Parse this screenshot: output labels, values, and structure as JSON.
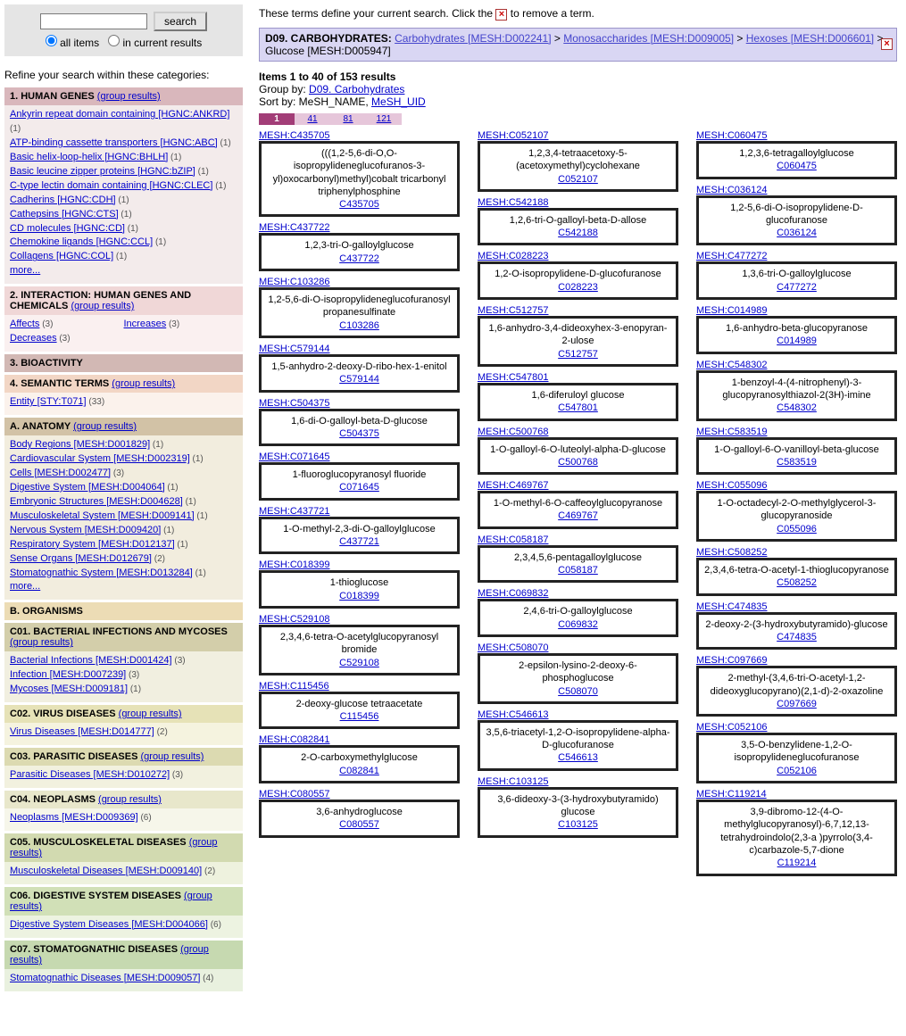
{
  "search": {
    "button": "search",
    "radio_all": "all items",
    "radio_current": "in current results"
  },
  "refine_title": "Refine your search within these categories:",
  "group_results": "(group results)",
  "more": "more...",
  "categories": [
    {
      "title": "1. HUMAN GENES",
      "header_bg": "#d9b7bc",
      "body_bg": "#f3ebeb",
      "group": true,
      "items": [
        {
          "t": "Ankyrin repeat domain containing [HGNC:ANKRD]",
          "c": 1
        },
        {
          "t": "ATP-binding cassette transporters [HGNC:ABC]",
          "c": 1
        },
        {
          "t": "Basic helix-loop-helix [HGNC:BHLH]",
          "c": 1
        },
        {
          "t": "Basic leucine zipper proteins [HGNC:bZIP]",
          "c": 1
        },
        {
          "t": "C-type lectin domain containing [HGNC:CLEC]",
          "c": 1
        },
        {
          "t": "Cadherins [HGNC:CDH]",
          "c": 1
        },
        {
          "t": "Cathepsins [HGNC:CTS]",
          "c": 1
        },
        {
          "t": "CD molecules [HGNC:CD]",
          "c": 1
        },
        {
          "t": "Chemokine ligands [HGNC:CCL]",
          "c": 1
        },
        {
          "t": "Collagens [HGNC:COL]",
          "c": 1
        }
      ],
      "more": true
    },
    {
      "title": "2. INTERACTION: HUMAN GENES AND CHEMICALS",
      "header_bg": "#f0d7d7",
      "body_bg": "#faf0f0",
      "group": true,
      "two_col": true,
      "items": [
        {
          "t": "Affects",
          "c": 3
        },
        {
          "t": "Increases",
          "c": 3
        },
        {
          "t": "Decreases",
          "c": 3
        }
      ]
    },
    {
      "title": "3. BIOACTIVITY",
      "header_bg": "#d2b8b4",
      "body_bg": null,
      "group": false,
      "items": []
    },
    {
      "title": "4. SEMANTIC TERMS",
      "header_bg": "#f2d6c5",
      "body_bg": "#fbf2ec",
      "group": true,
      "items": [
        {
          "t": "Entity [STY:T071]",
          "c": 33
        }
      ]
    },
    {
      "title": "A. ANATOMY",
      "header_bg": "#d2c2a6",
      "body_bg": "#f2edde",
      "group": true,
      "items": [
        {
          "t": "Body Regions [MESH:D001829]",
          "c": 1
        },
        {
          "t": "Cardiovascular System [MESH:D002319]",
          "c": 1
        },
        {
          "t": "Cells [MESH:D002477]",
          "c": 3
        },
        {
          "t": "Digestive System [MESH:D004064]",
          "c": 1
        },
        {
          "t": "Embryonic Structures [MESH:D004628]",
          "c": 1
        },
        {
          "t": "Musculoskeletal System [MESH:D009141]",
          "c": 1
        },
        {
          "t": "Nervous System [MESH:D009420]",
          "c": 1
        },
        {
          "t": "Respiratory System [MESH:D012137]",
          "c": 1
        },
        {
          "t": "Sense Organs [MESH:D012679]",
          "c": 2
        },
        {
          "t": "Stomatognathic System [MESH:D013284]",
          "c": 1
        }
      ],
      "more": true
    },
    {
      "title": "B. ORGANISMS",
      "header_bg": "#ecdcb5",
      "body_bg": null,
      "group": false,
      "items": []
    },
    {
      "title": "C01. BACTERIAL INFECTIONS AND MYCOSES",
      "header_bg": "#d3ceaa",
      "body_bg": "#f1efe0",
      "group": true,
      "items": [
        {
          "t": "Bacterial Infections [MESH:D001424]",
          "c": 3
        },
        {
          "t": "Infection [MESH:D007239]",
          "c": 3
        },
        {
          "t": "Mycoses [MESH:D009181]",
          "c": 1
        }
      ]
    },
    {
      "title": "C02. VIRUS DISEASES",
      "header_bg": "#e6e2b7",
      "body_bg": "#f5f3df",
      "group": true,
      "items": [
        {
          "t": "Virus Diseases [MESH:D014777]",
          "c": 2
        }
      ]
    },
    {
      "title": "C03. PARASITIC DISEASES",
      "header_bg": "#dcdab1",
      "body_bg": "#f2f1df",
      "group": true,
      "items": [
        {
          "t": "Parasitic Diseases [MESH:D010272]",
          "c": 3
        }
      ]
    },
    {
      "title": "C04. NEOPLASMS",
      "header_bg": "#e8e7cb",
      "body_bg": "#f6f6ea",
      "group": true,
      "items": [
        {
          "t": "Neoplasms [MESH:D009369]",
          "c": 6
        }
      ]
    },
    {
      "title": "C05. MUSCULOSKELETAL DISEASES",
      "header_bg": "#d2dab0",
      "body_bg": "#eef2de",
      "group": true,
      "items": [
        {
          "t": "Musculoskeletal Diseases [MESH:D009140]",
          "c": 2
        }
      ]
    },
    {
      "title": "C06. DIGESTIVE SYSTEM DISEASES",
      "header_bg": "#d1e0b7",
      "body_bg": "#edf3e1",
      "group": true,
      "items": [
        {
          "t": "Digestive System Diseases [MESH:D004066]",
          "c": 6
        }
      ]
    },
    {
      "title": "C07. STOMATOGNATHIC DISEASES",
      "header_bg": "#c6d9b0",
      "body_bg": "#e9f1df",
      "group": true,
      "items": [
        {
          "t": "Stomatognathic Diseases [MESH:D009057]",
          "c": 4
        }
      ]
    }
  ],
  "top_msg_pre": "These terms define your current search. Click the ",
  "top_msg_post": " to remove a term.",
  "breadcrumb": {
    "prefix": "D09. CARBOHYDRATES:",
    "path": [
      "Carbohydrates [MESH:D002241]",
      "Monosaccharides [MESH:D009005]",
      "Hexoses [MESH:D006601]"
    ],
    "tail": "Glucose [MESH:D005947]"
  },
  "result_line": "Items 1 to 40 of 153 results",
  "group_by_pre": "Group by: ",
  "group_by_link": "D09. Carbohydrates",
  "sort_by_pre": "Sort by: MeSH_NAME, ",
  "sort_by_link": "MeSH_UID",
  "pager": [
    {
      "n": "1",
      "on": true
    },
    {
      "n": "41",
      "on": false
    },
    {
      "n": "81",
      "on": false
    },
    {
      "n": "121",
      "on": false
    }
  ],
  "cards": [
    {
      "m": "MESH:C435705",
      "n": "(((1,2-5,6-di-O,O-isopropylideneglucofuranos-3-yl)oxocarbonyl)methyl)cobalt tricarbonyl triphenylphosphine",
      "id": "C435705"
    },
    {
      "m": "MESH:C052107",
      "n": "1,2,3,4-tetraacetoxy-5-(acetoxymethyl)cyclohexane",
      "id": "C052107"
    },
    {
      "m": "MESH:C060475",
      "n": "1,2,3,6-tetragalloylglucose",
      "id": "C060475"
    },
    {
      "m": "MESH:C437722",
      "n": "1,2,3-tri-O-galloylglucose",
      "id": "C437722"
    },
    {
      "m": "MESH:C542188",
      "n": "1,2,6-tri-O-galloyl-beta-D-allose",
      "id": "C542188"
    },
    {
      "m": "MESH:C036124",
      "n": "1,2-5,6-di-O-isopropylidene-D-glucofuranose",
      "id": "C036124"
    },
    {
      "m": "MESH:C103286",
      "n": "1,2-5,6-di-O-isopropylideneglucofuranosyl propanesulfinate",
      "id": "C103286"
    },
    {
      "m": "MESH:C028223",
      "n": "1,2-O-isopropylidene-D-glucofuranose",
      "id": "C028223"
    },
    {
      "m": "MESH:C477272",
      "n": "1,3,6-tri-O-galloylglucose",
      "id": "C477272"
    },
    {
      "m": "MESH:C579144",
      "n": "1,5-anhydro-2-deoxy-D-ribo-hex-1-enitol",
      "id": "C579144"
    },
    {
      "m": "MESH:C512757",
      "n": "1,6-anhydro-3,4-dideoxyhex-3-enopyran-2-ulose",
      "id": "C512757"
    },
    {
      "m": "MESH:C014989",
      "n": "1,6-anhydro-beta-glucopyranose",
      "id": "C014989"
    },
    {
      "m": "MESH:C504375",
      "n": "1,6-di-O-galloyl-beta-D-glucose",
      "id": "C504375"
    },
    {
      "m": "MESH:C547801",
      "n": "1,6-diferuloyl glucose",
      "id": "C547801"
    },
    {
      "m": "MESH:C548302",
      "n": "1-benzoyl-4-(4-nitrophenyl)-3-glucopyranosylthiazol-2(3H)-imine",
      "id": "C548302"
    },
    {
      "m": "MESH:C071645",
      "n": "1-fluoroglucopyranosyl fluoride",
      "id": "C071645"
    },
    {
      "m": "MESH:C500768",
      "n": "1-O-galloyl-6-O-luteolyl-alpha-D-glucose",
      "id": "C500768"
    },
    {
      "m": "MESH:C583519",
      "n": "1-O-galloyl-6-O-vanilloyl-beta-glucose",
      "id": "C583519"
    },
    {
      "m": "MESH:C437721",
      "n": "1-O-methyl-2,3-di-O-galloylglucose",
      "id": "C437721"
    },
    {
      "m": "MESH:C469767",
      "n": "1-O-methyl-6-O-caffeoylglucopyranose",
      "id": "C469767"
    },
    {
      "m": "MESH:C055096",
      "n": "1-O-octadecyl-2-O-methylglycerol-3-glucopyranoside",
      "id": "C055096"
    },
    {
      "m": "MESH:C018399",
      "n": "1-thioglucose",
      "id": "C018399"
    },
    {
      "m": "MESH:C058187",
      "n": "2,3,4,5,6-pentagalloylglucose",
      "id": "C058187"
    },
    {
      "m": "MESH:C508252",
      "n": "2,3,4,6-tetra-O-acetyl-1-thioglucopyranose",
      "id": "C508252"
    },
    {
      "m": "MESH:C529108",
      "n": "2,3,4,6-tetra-O-acetylglucopyranosyl bromide",
      "id": "C529108"
    },
    {
      "m": "MESH:C069832",
      "n": "2,4,6-tri-O-galloylglucose",
      "id": "C069832"
    },
    {
      "m": "MESH:C474835",
      "n": "2-deoxy-2-(3-hydroxybutyramido)-glucose",
      "id": "C474835"
    },
    {
      "m": "MESH:C115456",
      "n": "2-deoxy-glucose tetraacetate",
      "id": "C115456"
    },
    {
      "m": "MESH:C508070",
      "n": "2-epsilon-lysino-2-deoxy-6-phosphoglucose",
      "id": "C508070"
    },
    {
      "m": "MESH:C097669",
      "n": "2-methyl-(3,4,6-tri-O-acetyl-1,2-dideoxyglucopyrano)(2,1-d)-2-oxazoline",
      "id": "C097669"
    },
    {
      "m": "MESH:C082841",
      "n": "2-O-carboxymethylglucose",
      "id": "C082841"
    },
    {
      "m": "MESH:C546613",
      "n": "3,5,6-triacetyl-1,2-O-isopropylidene-alpha-D-glucofuranose",
      "id": "C546613"
    },
    {
      "m": "MESH:C052106",
      "n": "3,5-O-benzylidene-1,2-O-isopropylideneglucofuranose",
      "id": "C052106"
    },
    {
      "m": "MESH:C080557",
      "n": "3,6-anhydroglucose",
      "id": "C080557"
    },
    {
      "m": "MESH:C103125",
      "n": "3,6-dideoxy-3-(3-hydroxybutyramido) glucose",
      "id": "C103125"
    },
    {
      "m": "MESH:C119214",
      "n": "3,9-dibromo-12-(4-O-methylglucopyranosyl)-6,7,12,13-tetrahydroindolo(2,3-a )pyrrolo(3,4-c)carbazole-5,7-dione",
      "id": "C119214"
    }
  ]
}
